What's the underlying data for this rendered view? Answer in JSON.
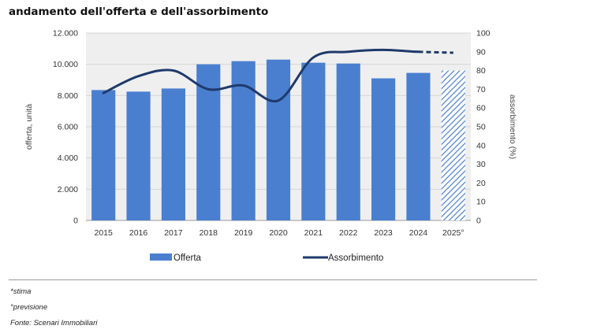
{
  "title": "andamento dell'offerta e dell'assorbimento",
  "notes": [
    "*stima",
    "°previsione",
    "Fonte: Scenari Immobiliari"
  ],
  "chart_data": {
    "type": "bar+line",
    "categories": [
      "2015",
      "2016",
      "2017",
      "2018",
      "2019",
      "2020",
      "2021",
      "2022",
      "2023",
      "2024",
      "2025°"
    ],
    "ylabel_left": "offerta, unità",
    "ylabel_right": "assorbimento (%)",
    "yticks_left": [
      "0",
      "2.000",
      "4.000",
      "6.000",
      "8.000",
      "10.000",
      "12.000"
    ],
    "yticks_right": [
      "0",
      "10",
      "20",
      "30",
      "40",
      "50",
      "60",
      "70",
      "80",
      "90",
      "100"
    ],
    "ylim_left": [
      0,
      12000
    ],
    "ylim_right": [
      0,
      100
    ],
    "grid": true,
    "legend_position": "bottom",
    "series": [
      {
        "name": "Offerta",
        "type": "bar",
        "axis": "left",
        "color": "#4a7fd0",
        "values": [
          8350,
          8250,
          8450,
          10000,
          10200,
          10300,
          10100,
          10050,
          9100,
          9450,
          9600
        ],
        "hatched_last": true
      },
      {
        "name": "Assorbimento",
        "type": "line",
        "axis": "right",
        "color": "#1f3a6b",
        "values": [
          68,
          77,
          80,
          70,
          72,
          64,
          87,
          90,
          91,
          90,
          89.5
        ],
        "dashed_last_segment": true
      }
    ]
  }
}
